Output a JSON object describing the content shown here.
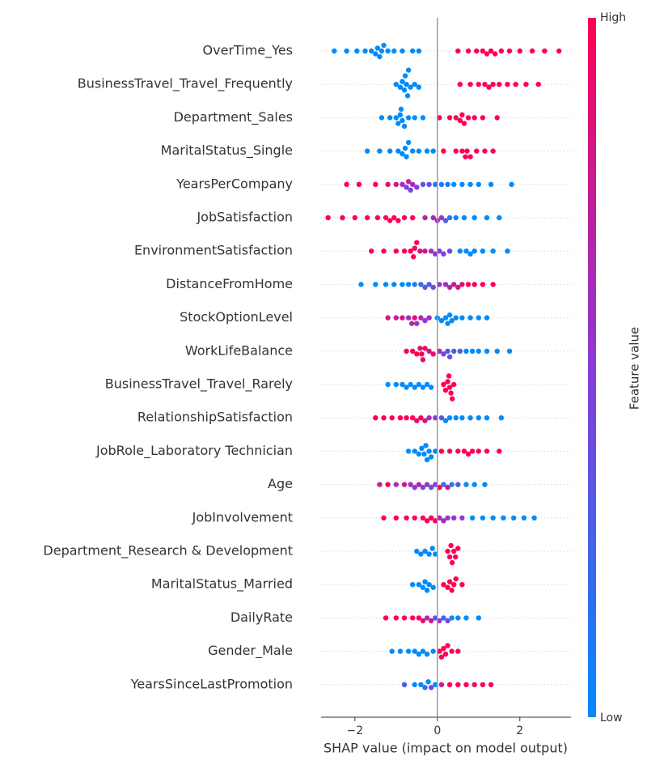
{
  "chart_data": {
    "type": "beeswarm",
    "xlabel": "SHAP value (impact on model output)",
    "colorbar_label": "Feature value",
    "colorbar_high": "High",
    "colorbar_low": "Low",
    "colormap": [
      "#008bfb",
      "#8a3ad8",
      "#ff0052"
    ],
    "xlim": [
      -2.82,
      3.24
    ],
    "xticks": [
      {
        "value": -2,
        "label": "−2"
      },
      0,
      2
    ],
    "features": [
      {
        "name": "OverTime_Yes",
        "shap": [
          -2.5,
          -2.2,
          -1.95,
          -1.75,
          -1.6,
          -1.5,
          -1.45,
          -1.4,
          -1.35,
          -1.3,
          -1.2,
          -1.05,
          -0.85,
          -0.6,
          -0.45,
          0.5,
          0.75,
          0.95,
          1.1,
          1.2,
          1.3,
          1.4,
          1.55,
          1.75,
          2.0,
          2.3,
          2.6,
          2.95
        ],
        "feature_value": [
          0,
          0,
          0,
          0,
          0,
          0,
          0,
          0,
          0,
          0,
          0,
          0,
          0,
          0,
          0,
          1,
          1,
          1,
          1,
          1,
          1,
          1,
          1,
          1,
          1,
          1,
          1,
          1
        ]
      },
      {
        "name": "BusinessTravel_Travel_Frequently",
        "shap": [
          -1.0,
          -0.9,
          -0.85,
          -0.8,
          -0.78,
          -0.75,
          -0.72,
          -0.7,
          -0.65,
          -0.55,
          -0.45,
          0.55,
          0.8,
          1.0,
          1.15,
          1.25,
          1.35,
          1.5,
          1.7,
          1.9,
          2.15,
          2.45
        ],
        "feature_value": [
          0,
          0,
          0,
          0,
          0,
          0,
          0,
          0,
          0,
          0,
          0,
          1,
          1,
          1,
          1,
          1,
          1,
          1,
          1,
          1,
          1,
          1
        ]
      },
      {
        "name": "Department_Sales",
        "shap": [
          -1.35,
          -1.15,
          -1.0,
          -0.95,
          -0.9,
          -0.88,
          -0.85,
          -0.8,
          -0.7,
          -0.55,
          -0.35,
          0.05,
          0.3,
          0.45,
          0.55,
          0.6,
          0.65,
          0.75,
          0.9,
          1.1,
          1.45
        ],
        "feature_value": [
          0,
          0,
          0,
          0,
          0,
          0,
          0,
          0,
          0,
          0,
          0,
          1,
          1,
          1,
          1,
          1,
          1,
          1,
          1,
          1,
          1
        ]
      },
      {
        "name": "MaritalStatus_Single",
        "shap": [
          -1.7,
          -1.4,
          -1.15,
          -0.95,
          -0.85,
          -0.78,
          -0.75,
          -0.7,
          -0.6,
          -0.45,
          -0.25,
          -0.1,
          0.15,
          0.45,
          0.6,
          0.68,
          0.72,
          0.8,
          0.95,
          1.15,
          1.35
        ],
        "feature_value": [
          0,
          0,
          0,
          0,
          0,
          0,
          0,
          0,
          0,
          0,
          0,
          0,
          1,
          1,
          1,
          1,
          1,
          1,
          1,
          1,
          1
        ]
      },
      {
        "name": "YearsPerCompany",
        "shap": [
          -2.2,
          -1.9,
          -1.5,
          -1.2,
          -1.0,
          -0.85,
          -0.75,
          -0.7,
          -0.65,
          -0.6,
          -0.5,
          -0.35,
          -0.2,
          -0.05,
          0.1,
          0.25,
          0.4,
          0.6,
          0.8,
          1.0,
          1.3,
          1.8
        ],
        "feature_value": [
          1,
          1,
          1,
          0.9,
          0.8,
          0.6,
          0.5,
          0.7,
          0.4,
          0.6,
          0.5,
          0.3,
          0.4,
          0.2,
          0.1,
          0.1,
          0,
          0,
          0,
          0,
          0,
          0
        ]
      },
      {
        "name": "JobSatisfaction",
        "shap": [
          -2.65,
          -2.3,
          -2.0,
          -1.7,
          -1.45,
          -1.25,
          -1.15,
          -1.05,
          -0.95,
          -0.8,
          -0.6,
          -0.3,
          -0.1,
          0.0,
          0.1,
          0.2,
          0.3,
          0.45,
          0.65,
          0.9,
          1.2,
          1.5
        ],
        "feature_value": [
          1,
          1,
          1,
          1,
          1,
          1,
          1,
          1,
          1,
          1,
          1,
          0.7,
          0.65,
          0.6,
          0.55,
          0.3,
          0.1,
          0,
          0,
          0,
          0,
          0
        ]
      },
      {
        "name": "EnvironmentSatisfaction",
        "shap": [
          -1.6,
          -1.3,
          -1.0,
          -0.8,
          -0.65,
          -0.58,
          -0.55,
          -0.5,
          -0.42,
          -0.3,
          -0.15,
          -0.05,
          0.05,
          0.15,
          0.3,
          0.55,
          0.7,
          0.8,
          0.9,
          1.1,
          1.35,
          1.7
        ],
        "feature_value": [
          1,
          1,
          1,
          1,
          1,
          1,
          0.9,
          1,
          0.85,
          0.8,
          0.6,
          0.55,
          0.5,
          0.45,
          0.4,
          0,
          0,
          0,
          0,
          0,
          0,
          0
        ]
      },
      {
        "name": "DistanceFromHome",
        "shap": [
          -1.85,
          -1.5,
          -1.25,
          -1.05,
          -0.85,
          -0.7,
          -0.55,
          -0.4,
          -0.3,
          -0.2,
          -0.1,
          0.05,
          0.2,
          0.3,
          0.4,
          0.5,
          0.6,
          0.75,
          0.9,
          1.1,
          1.35
        ],
        "feature_value": [
          0,
          0,
          0,
          0,
          0,
          0,
          0.1,
          0.2,
          0.3,
          0.3,
          0.4,
          0.5,
          0.6,
          0.7,
          0.75,
          0.8,
          0.9,
          1,
          1,
          1,
          1
        ]
      },
      {
        "name": "StockOptionLevel",
        "shap": [
          -1.2,
          -1.0,
          -0.85,
          -0.7,
          -0.62,
          -0.55,
          -0.5,
          -0.4,
          -0.3,
          -0.2,
          0.0,
          0.1,
          0.2,
          0.25,
          0.3,
          0.35,
          0.45,
          0.6,
          0.8,
          1.0,
          1.2
        ],
        "feature_value": [
          0.8,
          0.7,
          0.8,
          0.6,
          0.7,
          0.9,
          0.6,
          0.7,
          0.5,
          0.6,
          0,
          0,
          0,
          0,
          0,
          0,
          0,
          0,
          0,
          0,
          0
        ]
      },
      {
        "name": "WorkLifeBalance",
        "shap": [
          -0.75,
          -0.6,
          -0.5,
          -0.42,
          -0.38,
          -0.35,
          -0.3,
          -0.2,
          -0.1,
          0.05,
          0.15,
          0.25,
          0.3,
          0.4,
          0.55,
          0.7,
          0.85,
          1.0,
          1.2,
          1.45,
          1.75
        ],
        "feature_value": [
          1,
          0.9,
          1,
          0.9,
          1,
          0.85,
          0.95,
          0.8,
          0.9,
          0.6,
          0.4,
          0.3,
          0.35,
          0.3,
          0.25,
          0,
          0,
          0,
          0,
          0,
          0
        ]
      },
      {
        "name": "BusinessTravel_Travel_Rarely",
        "shap": [
          -1.2,
          -1.0,
          -0.85,
          -0.75,
          -0.65,
          -0.55,
          -0.45,
          -0.35,
          -0.25,
          -0.15,
          0.15,
          0.2,
          0.25,
          0.28,
          0.3,
          0.33,
          0.36,
          0.4
        ],
        "feature_value": [
          0,
          0,
          0,
          0,
          0,
          0,
          0,
          0,
          0,
          0,
          1,
          1,
          1,
          1,
          1,
          1,
          1,
          1
        ]
      },
      {
        "name": "RelationshipSatisfaction",
        "shap": [
          -1.5,
          -1.3,
          -1.1,
          -0.9,
          -0.75,
          -0.6,
          -0.5,
          -0.4,
          -0.3,
          -0.2,
          -0.05,
          0.1,
          0.2,
          0.3,
          0.45,
          0.6,
          0.8,
          1.0,
          1.2,
          1.55
        ],
        "feature_value": [
          1,
          1,
          1,
          1,
          1,
          1,
          0.9,
          1,
          0.8,
          0.6,
          0.5,
          0.3,
          0,
          0,
          0,
          0,
          0,
          0,
          0,
          0
        ]
      },
      {
        "name": "JobRole_Laboratory Technician",
        "shap": [
          -0.7,
          -0.55,
          -0.45,
          -0.38,
          -0.32,
          -0.28,
          -0.25,
          -0.2,
          -0.15,
          -0.05,
          0.1,
          0.3,
          0.5,
          0.65,
          0.75,
          0.85,
          1.0,
          1.2,
          1.5
        ],
        "feature_value": [
          0,
          0,
          0,
          0,
          0,
          0,
          0,
          0,
          0,
          0,
          1,
          1,
          1,
          1,
          1,
          1,
          1,
          1,
          1
        ]
      },
      {
        "name": "Age",
        "shap": [
          -1.4,
          -1.2,
          -1.0,
          -0.8,
          -0.65,
          -0.55,
          -0.45,
          -0.35,
          -0.25,
          -0.15,
          -0.05,
          0.05,
          0.15,
          0.25,
          0.35,
          0.5,
          0.7,
          0.9,
          1.15
        ],
        "feature_value": [
          0.7,
          1,
          0.6,
          0.8,
          0.6,
          0.5,
          0.7,
          0.4,
          0.6,
          0.3,
          0.5,
          1,
          0.2,
          0.8,
          0.1,
          0.3,
          0,
          0,
          0
        ]
      },
      {
        "name": "JobInvolvement",
        "shap": [
          -1.3,
          -1.0,
          -0.75,
          -0.55,
          -0.35,
          -0.25,
          -0.15,
          -0.05,
          0.05,
          0.15,
          0.25,
          0.4,
          0.6,
          0.85,
          1.1,
          1.35,
          1.6,
          1.85,
          2.1,
          2.35
        ],
        "feature_value": [
          1,
          1,
          1,
          1,
          1,
          1,
          1,
          1,
          0.6,
          0.6,
          0.5,
          0.55,
          0.5,
          0,
          0,
          0,
          0,
          0,
          0,
          0
        ]
      },
      {
        "name": "Department_Research & Development",
        "shap": [
          -0.5,
          -0.4,
          -0.3,
          -0.2,
          -0.12,
          -0.05,
          0.25,
          0.3,
          0.33,
          0.36,
          0.4,
          0.44,
          0.5
        ],
        "feature_value": [
          0,
          0,
          0,
          0,
          0,
          0,
          1,
          1,
          1,
          1,
          1,
          1,
          1
        ]
      },
      {
        "name": "MaritalStatus_Married",
        "shap": [
          -0.6,
          -0.45,
          -0.35,
          -0.3,
          -0.25,
          -0.2,
          -0.1,
          0.15,
          0.25,
          0.3,
          0.35,
          0.4,
          0.45,
          0.6
        ],
        "feature_value": [
          0,
          0,
          0,
          0,
          0,
          0,
          0,
          1,
          1,
          1,
          1,
          1,
          1,
          1
        ]
      },
      {
        "name": "DailyRate",
        "shap": [
          -1.25,
          -1.0,
          -0.8,
          -0.6,
          -0.45,
          -0.35,
          -0.25,
          -0.15,
          -0.05,
          0.05,
          0.15,
          0.25,
          0.35,
          0.5,
          0.7,
          1.0
        ],
        "feature_value": [
          1,
          1,
          1,
          1,
          1,
          0.9,
          0.6,
          0.8,
          0.3,
          0.5,
          0.2,
          0.4,
          0,
          0,
          0,
          0
        ]
      },
      {
        "name": "Gender_Male",
        "shap": [
          -1.1,
          -0.9,
          -0.7,
          -0.55,
          -0.45,
          -0.35,
          -0.25,
          -0.1,
          0.05,
          0.1,
          0.15,
          0.2,
          0.25,
          0.35,
          0.5
        ],
        "feature_value": [
          0,
          0,
          0,
          0,
          0,
          0,
          0,
          0,
          1,
          1,
          1,
          1,
          1,
          1,
          1
        ]
      },
      {
        "name": "YearsSinceLastPromotion",
        "shap": [
          -0.8,
          -0.55,
          -0.4,
          -0.3,
          -0.22,
          -0.15,
          -0.05,
          0.1,
          0.3,
          0.5,
          0.7,
          0.9,
          1.1,
          1.3
        ],
        "feature_value": [
          0.3,
          0,
          0,
          0.2,
          0,
          0.4,
          0,
          0.8,
          1,
          1,
          1,
          0.9,
          1,
          1
        ]
      }
    ]
  }
}
